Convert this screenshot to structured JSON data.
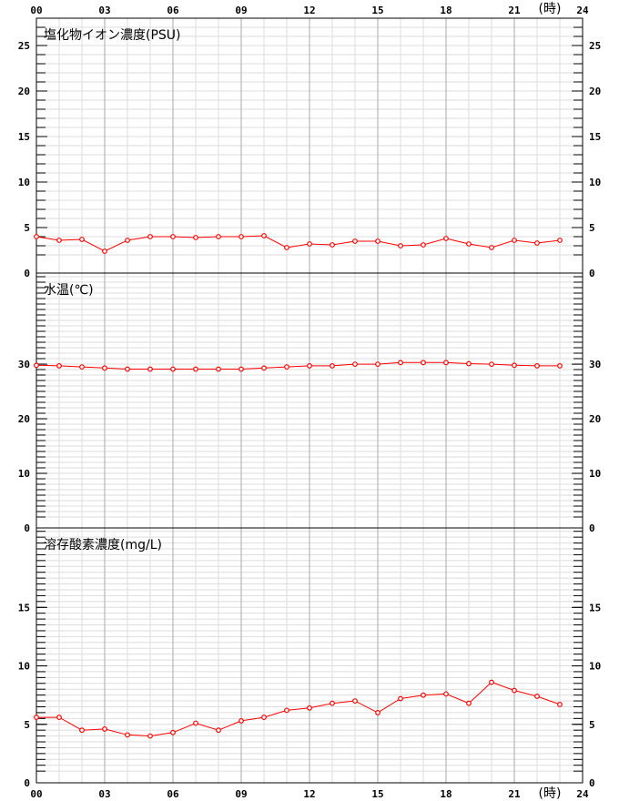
{
  "x_axis": {
    "ticks": [
      "00",
      "03",
      "06",
      "09",
      "12",
      "15",
      "18",
      "21",
      "24"
    ],
    "unit": "(時)"
  },
  "colors": {
    "series": "#ff0000",
    "grid_light": "#dddddd",
    "grid_dark": "#aaaaaa",
    "axis": "#000000"
  },
  "chart_data": [
    {
      "type": "line",
      "title": "塩化物イオン濃度(PSU)",
      "xlim": [
        0,
        24
      ],
      "ylim": [
        0,
        28
      ],
      "y_tick_labels": [
        0,
        5,
        10,
        15,
        20,
        25
      ],
      "x": [
        0,
        1,
        2,
        3,
        4,
        5,
        6,
        7,
        8,
        9,
        10,
        11,
        12,
        13,
        14,
        15,
        16,
        17,
        18,
        19,
        20,
        21,
        22,
        23
      ],
      "series": [
        {
          "values": [
            4.0,
            3.6,
            3.7,
            2.4,
            3.6,
            4.0,
            4.0,
            3.9,
            4.0,
            4.0,
            4.1,
            2.8,
            3.2,
            3.1,
            3.5,
            3.5,
            3.0,
            3.1,
            3.8,
            3.2,
            2.8,
            3.6,
            3.3,
            3.6
          ]
        }
      ],
      "grid": true
    },
    {
      "type": "line",
      "title": "水温(℃)",
      "xlim": [
        0,
        24
      ],
      "ylim": [
        0,
        46.7
      ],
      "y_tick_labels": [
        0,
        10,
        20,
        30
      ],
      "x": [
        0,
        1,
        2,
        3,
        4,
        5,
        6,
        7,
        8,
        9,
        10,
        11,
        12,
        13,
        14,
        15,
        16,
        17,
        18,
        19,
        20,
        21,
        22,
        23
      ],
      "series": [
        {
          "values": [
            29.8,
            29.7,
            29.5,
            29.3,
            29.1,
            29.1,
            29.1,
            29.1,
            29.1,
            29.1,
            29.3,
            29.5,
            29.7,
            29.7,
            30.0,
            30.0,
            30.3,
            30.3,
            30.3,
            30.1,
            30.0,
            29.8,
            29.7,
            29.7
          ]
        }
      ],
      "grid": true
    },
    {
      "type": "line",
      "title": "溶存酸素濃度(mg/L)",
      "xlim": [
        0,
        24
      ],
      "ylim": [
        0,
        21.8
      ],
      "y_tick_labels": [
        0,
        5,
        10,
        15
      ],
      "x": [
        0,
        1,
        2,
        3,
        4,
        5,
        6,
        7,
        8,
        9,
        10,
        11,
        12,
        13,
        14,
        15,
        16,
        17,
        18,
        19,
        20,
        21,
        22,
        23
      ],
      "series": [
        {
          "values": [
            5.6,
            5.6,
            4.5,
            4.6,
            4.1,
            4.0,
            4.3,
            5.1,
            4.5,
            5.3,
            5.6,
            6.2,
            6.4,
            6.8,
            7.0,
            6.0,
            7.2,
            7.5,
            7.6,
            6.8,
            8.6,
            7.9,
            7.4,
            6.7
          ]
        }
      ],
      "grid": true
    }
  ]
}
